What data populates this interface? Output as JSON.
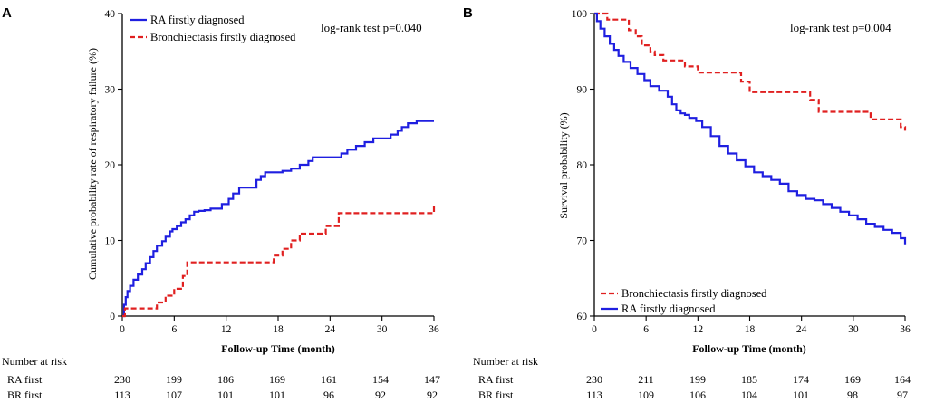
{
  "chart_data": [
    {
      "type": "line",
      "panel": "A",
      "ylabel": "Cumulative probability rate of respiratory failure (%)",
      "xlabel": "Follow-up Time (month)",
      "xlim": [
        0,
        36
      ],
      "ylim": [
        0,
        40
      ],
      "xticks": [
        "0",
        "6",
        "12",
        "18",
        "24",
        "30",
        "36"
      ],
      "yticks": [
        "0",
        "10",
        "20",
        "30",
        "40"
      ],
      "annotation": "log-rank test p=0.040",
      "legend_position": "top-left",
      "series": [
        {
          "name": "RA  firstly diagnosed",
          "color": "#1f1fe0",
          "dash": "solid",
          "x": [
            0,
            0.2,
            0.4,
            0.6,
            0.9,
            1.3,
            1.8,
            2.3,
            2.7,
            3.2,
            3.6,
            4.0,
            4.6,
            5.0,
            5.5,
            5.8,
            6.3,
            6.8,
            7.3,
            7.8,
            8.3,
            8.8,
            9.5,
            10.2,
            11.5,
            12.3,
            12.8,
            13.5,
            14.0,
            14.8,
            15.5,
            16.0,
            16.5,
            17.5,
            18.5,
            19.5,
            20.5,
            21.5,
            22.0,
            23.0,
            24.0,
            24.8,
            25.3,
            26.0,
            27.0,
            28.0,
            29.0,
            30.0,
            31.0,
            31.8,
            32.3,
            33.0,
            34.0,
            36.0
          ],
          "y": [
            0,
            1.5,
            2.5,
            3.3,
            4.0,
            4.8,
            5.5,
            6.2,
            7.0,
            7.8,
            8.6,
            9.3,
            9.9,
            10.5,
            11.2,
            11.5,
            11.9,
            12.4,
            12.8,
            13.3,
            13.8,
            13.9,
            14.0,
            14.2,
            14.8,
            15.5,
            16.2,
            17.0,
            17.0,
            17.0,
            18.0,
            18.5,
            19.0,
            19.0,
            19.2,
            19.5,
            20.0,
            20.5,
            21.0,
            21.0,
            21.0,
            21.0,
            21.5,
            22.0,
            22.5,
            23.0,
            23.5,
            23.5,
            24.0,
            24.5,
            25.0,
            25.5,
            25.8,
            25.8
          ]
        },
        {
          "name": "Bronchiectasis firstly diagnosed",
          "color": "#e02020",
          "dash": "dashed",
          "x": [
            0,
            0.3,
            3.5,
            4.0,
            5.0,
            6.0,
            7.0,
            7.5,
            13.0,
            16.0,
            17.5,
            18.5,
            19.5,
            20.5,
            23.5,
            25.0,
            25.5,
            35.8,
            36.0
          ],
          "y": [
            0,
            1.0,
            1.0,
            1.8,
            2.7,
            3.6,
            5.3,
            7.1,
            7.1,
            7.1,
            8.0,
            8.9,
            10.0,
            10.9,
            11.9,
            13.6,
            13.6,
            13.6,
            14.5
          ]
        }
      ],
      "risk_table": {
        "title": "Number at risk",
        "rows": [
          {
            "label": "RA first",
            "values": [
              "230",
              "199",
              "186",
              "169",
              "161",
              "154",
              "147"
            ]
          },
          {
            "label": "BR first",
            "values": [
              "113",
              "107",
              "101",
              "101",
              "96",
              "92",
              "92"
            ]
          }
        ]
      }
    },
    {
      "type": "line",
      "panel": "B",
      "ylabel": "Survival probability (%)",
      "xlabel": "Follow-up Time (month)",
      "xlim": [
        0,
        36
      ],
      "ylim": [
        60,
        100
      ],
      "xticks": [
        "0",
        "6",
        "12",
        "18",
        "24",
        "30",
        "36"
      ],
      "yticks": [
        "60",
        "70",
        "80",
        "90",
        "100"
      ],
      "annotation": "log-rank test p=0.004",
      "legend_position": "bottom-left",
      "series": [
        {
          "name": "Bronchiectasis firstly diagnosed",
          "color": "#e02020",
          "dash": "dashed",
          "x": [
            0,
            0.8,
            1.5,
            3.5,
            4.0,
            4.8,
            5.5,
            6.5,
            7.0,
            8.0,
            10.0,
            10.5,
            12.0,
            16.0,
            17.0,
            18.0,
            24.0,
            25.0,
            26.0,
            31.0,
            32.0,
            34.0,
            35.5,
            36.0
          ],
          "y": [
            100,
            100,
            99.2,
            99.2,
            97.8,
            97.0,
            95.8,
            95.0,
            94.5,
            93.8,
            93.8,
            93.0,
            92.2,
            92.2,
            91.0,
            89.6,
            89.6,
            88.6,
            87.0,
            87.0,
            86.0,
            86.0,
            85.0,
            84.5
          ]
        },
        {
          "name": "RA  firstly diagnosed",
          "color": "#1f1fe0",
          "dash": "solid",
          "x": [
            0,
            0.3,
            0.7,
            1.2,
            1.8,
            2.3,
            2.8,
            3.4,
            4.2,
            5.0,
            5.8,
            6.5,
            7.5,
            8.5,
            9.0,
            9.5,
            10.0,
            10.5,
            11.0,
            11.8,
            12.5,
            13.5,
            14.5,
            15.5,
            16.5,
            17.5,
            18.5,
            19.5,
            20.5,
            21.5,
            22.5,
            23.5,
            24.5,
            25.5,
            26.5,
            27.5,
            28.5,
            29.5,
            30.5,
            31.5,
            32.5,
            33.5,
            34.5,
            35.5,
            36.0
          ],
          "y": [
            100,
            99.0,
            98.0,
            97.0,
            96.0,
            95.2,
            94.4,
            93.6,
            92.8,
            92.0,
            91.2,
            90.4,
            89.8,
            89.0,
            88.0,
            87.2,
            86.8,
            86.6,
            86.2,
            85.8,
            85.0,
            83.8,
            82.5,
            81.5,
            80.6,
            79.8,
            79.0,
            78.5,
            78.0,
            77.5,
            76.5,
            76.0,
            75.5,
            75.3,
            74.8,
            74.3,
            73.8,
            73.3,
            72.8,
            72.2,
            71.8,
            71.4,
            71.0,
            70.3,
            69.5
          ]
        }
      ],
      "risk_table": {
        "title": "Number at risk",
        "rows": [
          {
            "label": "RA first",
            "values": [
              "230",
              "211",
              "199",
              "185",
              "174",
              "169",
              "164"
            ]
          },
          {
            "label": "BR first",
            "values": [
              "113",
              "109",
              "106",
              "104",
              "101",
              "98",
              "97"
            ]
          }
        ]
      }
    }
  ]
}
